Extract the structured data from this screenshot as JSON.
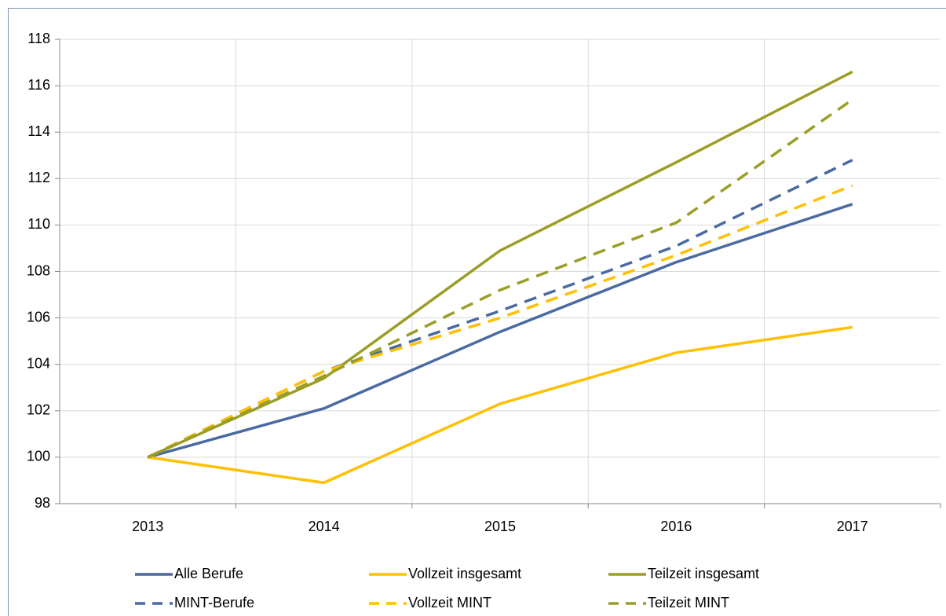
{
  "chart_data": {
    "type": "line",
    "categories": [
      "2013",
      "2014",
      "2015",
      "2016",
      "2017"
    ],
    "series": [
      {
        "name": "Alle Berufe",
        "color": "#4a6aa1",
        "dashed": false,
        "values": [
          100,
          102.1,
          105.4,
          108.4,
          110.9
        ]
      },
      {
        "name": "Vollzeit insgesamt",
        "color": "#ffc000",
        "dashed": false,
        "values": [
          100,
          98.9,
          102.3,
          104.5,
          105.6
        ]
      },
      {
        "name": "Teilzeit insgesamt",
        "color": "#9a9e25",
        "dashed": false,
        "values": [
          100,
          103.4,
          108.9,
          112.7,
          116.6
        ]
      },
      {
        "name": "MINT-Berufe",
        "color": "#4a6aa1",
        "dashed": true,
        "values": [
          100,
          103.7,
          106.3,
          109.1,
          112.8
        ]
      },
      {
        "name": "Vollzeit MINT",
        "color": "#ffc000",
        "dashed": true,
        "values": [
          100,
          103.7,
          106.0,
          108.7,
          111.7
        ]
      },
      {
        "name": "Teilzeit MINT",
        "color": "#9a9e25",
        "dashed": true,
        "values": [
          100,
          103.5,
          107.2,
          110.1,
          115.4
        ]
      }
    ],
    "ylim": [
      98,
      118
    ],
    "yticks": [
      98,
      100,
      102,
      104,
      106,
      108,
      110,
      112,
      114,
      116,
      118
    ],
    "grid": true,
    "legend": "bottom"
  }
}
